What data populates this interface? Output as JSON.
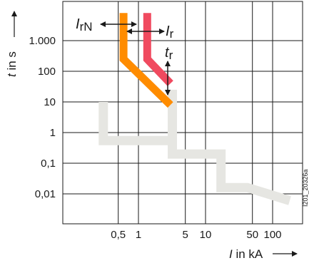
{
  "chart_data": {
    "type": "line",
    "xscale": "log",
    "yscale": "log",
    "xlabel_symbol": "I",
    "xlabel_rest": " in kA",
    "ylabel_symbol": "t",
    "ylabel_rest": " in s",
    "ylim": [
      0.001,
      10000
    ],
    "yticks": [
      {
        "value": 1000,
        "label": "1.000"
      },
      {
        "value": 100,
        "label": "100"
      },
      {
        "value": 10,
        "label": "10"
      },
      {
        "value": 1,
        "label": "1"
      },
      {
        "value": 0.1,
        "label": "0,1"
      },
      {
        "value": 0.01,
        "label": "0,01"
      }
    ],
    "xticks": [
      {
        "value": 0.5,
        "label": "0,5"
      },
      {
        "value": 1,
        "label": "1"
      },
      {
        "value": 5,
        "label": "5"
      },
      {
        "value": 10,
        "label": "10"
      },
      {
        "value": 50,
        "label": "50"
      },
      {
        "value": 100,
        "label": "100"
      }
    ],
    "series": [
      {
        "color": "#e6e6e2",
        "points": [
          {
            "x": 0.3,
            "y": 10
          },
          {
            "x": 0.3,
            "y": 0.55
          },
          {
            "x": 3.2,
            "y": 0.55
          },
          {
            "x": 3.2,
            "y": 0.2
          },
          {
            "x": 17,
            "y": 0.2
          },
          {
            "x": 17,
            "y": 0.016
          },
          {
            "x": 42,
            "y": 0.016
          },
          {
            "x": 180,
            "y": 0.006
          }
        ],
        "top_segment": [
          {
            "x": 3.2,
            "y": 25
          },
          {
            "x": 3.2,
            "y": 0.55
          }
        ]
      },
      {
        "color": "#ff8c00",
        "points": [
          {
            "x": 0.6,
            "y": 8000
          },
          {
            "x": 0.6,
            "y": 250
          },
          {
            "x": 3.0,
            "y": 8
          }
        ]
      },
      {
        "color": "#f04a5f",
        "points": [
          {
            "x": 1.35,
            "y": 8000
          },
          {
            "x": 1.35,
            "y": 250
          },
          {
            "x": 3.0,
            "y": 40
          }
        ]
      }
    ],
    "annotations": {
      "irn_symbol": "I",
      "irn_sub": "rN",
      "ir_symbol": "I",
      "ir_sub": "r",
      "tr_symbol": "t",
      "tr_sub": "r"
    },
    "figure_code": "I201_20326a",
    "grid": true
  }
}
